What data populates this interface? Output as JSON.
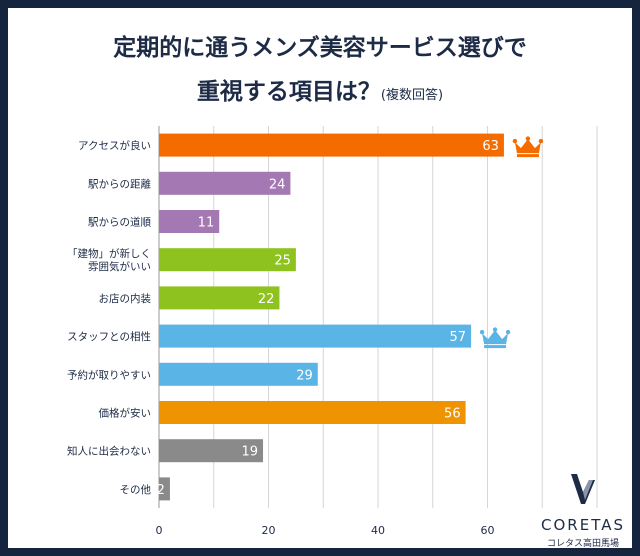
{
  "title": {
    "line1": "定期的に通うメンズ美容サービス選びで",
    "line2": "重視する項目は？",
    "note": "(複数回答)"
  },
  "logo": {
    "name": "CORETAS",
    "tagline": "コレタス高田馬場"
  },
  "chart_data": {
    "type": "bar",
    "orientation": "horizontal",
    "categories": [
      "アクセスが良い",
      "駅からの距離",
      "駅からの道順",
      "「建物」が新しく\n雰囲気がいい",
      "お店の内装",
      "スタッフとの相性",
      "予約が取りやすい",
      "価格が安い",
      "知人に出会わない",
      "その他"
    ],
    "values": [
      63,
      24,
      11,
      25,
      22,
      57,
      29,
      56,
      19,
      2
    ],
    "colors": [
      "#f46c00",
      "#a478b2",
      "#a478b2",
      "#8ec21f",
      "#8ec21f",
      "#5ab4e6",
      "#5ab4e6",
      "#ef9300",
      "#8a8a8a",
      "#8a8a8a"
    ],
    "crowns": [
      {
        "index": 0,
        "color": "#f46c00"
      },
      {
        "index": 5,
        "color": "#5ab4e6"
      }
    ],
    "xlim": [
      0,
      80
    ],
    "xticks": [
      0,
      20,
      40,
      60
    ],
    "grid": true
  }
}
